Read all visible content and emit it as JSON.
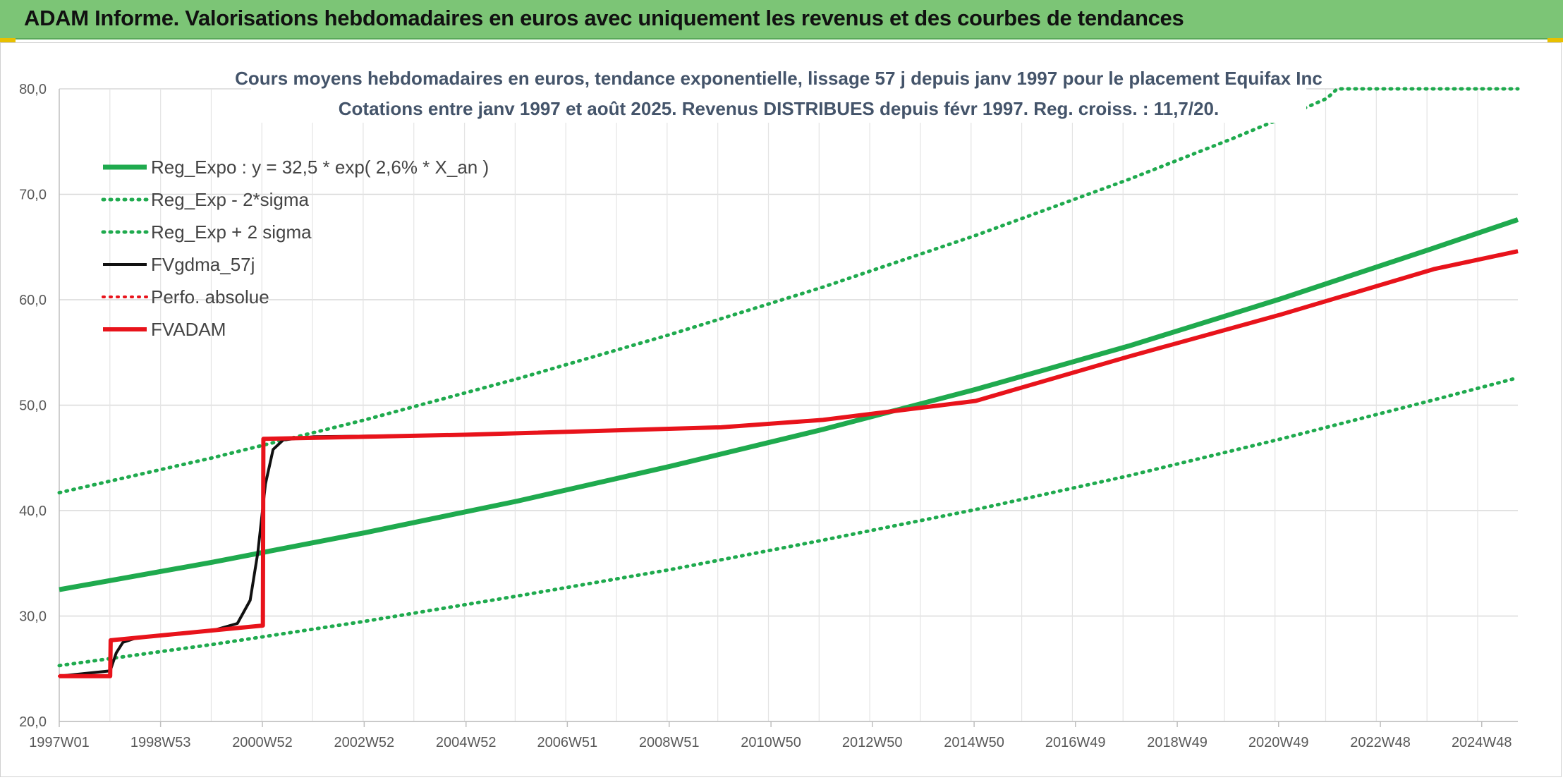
{
  "banner": {
    "title": "ADAM Informe. Valorisations hebdomadaires en euros avec uniquement les revenus et des courbes de tendances"
  },
  "chart_data": {
    "type": "line",
    "title": "Cours moyens hebdomadaires en euros, tendance exponentielle, lissage 57 j depuis janv 1997 pour le placement Equifax Inc",
    "subtitle": "Cotations entre janv 1997 et août 2025. Revenus DISTRIBUES depuis févr 1997. Reg. croiss. : 11,7/20.",
    "xlabel": "",
    "ylabel": "",
    "ylim": [
      20,
      80
    ],
    "yticks": [
      20,
      30,
      40,
      50,
      60,
      70,
      80
    ],
    "ytick_labels": [
      "20,0",
      "30,0",
      "40,0",
      "50,0",
      "60,0",
      "70,0",
      "80,0"
    ],
    "xlim": [
      1997.0,
      2025.65
    ],
    "xticks": [
      1997.0,
      1998.99,
      2000.99,
      2002.99,
      2004.99,
      2006.98,
      2008.98,
      2010.98,
      2012.97,
      2014.97,
      2016.96,
      2018.96,
      2020.95,
      2022.95,
      2024.94
    ],
    "xtick_labels": [
      "1997W01",
      "1998W53",
      "2000W52",
      "2002W52",
      "2004W52",
      "2006W51",
      "2008W51",
      "2010W50",
      "2012W50",
      "2014W50",
      "2016W49",
      "2018W49",
      "2020W49",
      "2022W48",
      "2024W48"
    ],
    "grid": true,
    "legend_position": "top-left",
    "series": [
      {
        "name": "Reg_Expo : y = 32,5 * exp( 2,6% *  X_an )",
        "color": "#1faa4e",
        "style": "solid",
        "width": 7,
        "x": [
          1997.0,
          2000.0,
          2003.0,
          2006.0,
          2009.0,
          2012.0,
          2015.0,
          2018.0,
          2021.0,
          2024.0,
          2025.65
        ],
        "y": [
          32.5,
          35.1,
          37.9,
          40.9,
          44.2,
          47.7,
          51.5,
          55.6,
          60.1,
          64.9,
          67.6
        ]
      },
      {
        "name": "Reg_Exp - 2*sigma",
        "color": "#1faa4e",
        "style": "dotted",
        "width": 5,
        "x": [
          1997.0,
          2000.0,
          2003.0,
          2006.0,
          2009.0,
          2012.0,
          2015.0,
          2018.0,
          2021.0,
          2024.0,
          2025.65
        ],
        "y": [
          25.3,
          27.3,
          29.5,
          31.9,
          34.4,
          37.2,
          40.1,
          43.3,
          46.8,
          50.5,
          52.6
        ]
      },
      {
        "name": "Reg_Exp + 2 sigma",
        "color": "#1faa4e",
        "style": "dotted",
        "width": 5,
        "x": [
          1997.0,
          2000.0,
          2003.0,
          2006.0,
          2009.0,
          2012.0,
          2015.0,
          2018.0,
          2020.0,
          2021.0,
          2021.9,
          2022.1,
          2025.65
        ],
        "y": [
          41.7,
          45.0,
          48.6,
          52.5,
          56.7,
          61.2,
          66.1,
          71.4,
          75.2,
          77.2,
          79.1,
          80.0,
          80.0
        ]
      },
      {
        "name": "FVgdma_57j",
        "color": "#111111",
        "style": "solid",
        "width": 4,
        "x": [
          1997.0,
          1998.0,
          1998.12,
          1998.25,
          1998.5,
          2000.0,
          2000.5,
          2000.75,
          2000.9,
          2001.05,
          2001.2,
          2001.4,
          2002.0,
          2005.0,
          2010.0,
          2012.0,
          2015.0,
          2018.0,
          2021.0,
          2024.0,
          2025.65
        ],
        "y": [
          24.3,
          24.8,
          26.5,
          27.5,
          27.9,
          28.6,
          29.3,
          31.5,
          36.0,
          42.5,
          45.8,
          46.7,
          47.0,
          47.2,
          47.9,
          48.6,
          50.4,
          54.6,
          58.6,
          62.9,
          64.6
        ]
      },
      {
        "name": "Perfo. absolue",
        "color": "#e8131b",
        "style": "dotted",
        "width": 4,
        "x": [
          1997.0,
          1998.0,
          1998.01,
          2001.0,
          2001.01,
          2005.0,
          2010.0,
          2012.0,
          2015.0,
          2018.0,
          2021.0,
          2024.0,
          2025.65
        ],
        "y": [
          24.3,
          24.3,
          27.7,
          29.1,
          46.8,
          47.2,
          47.9,
          48.6,
          50.4,
          54.6,
          58.6,
          62.9,
          64.6
        ]
      },
      {
        "name": "FVADAM",
        "color": "#e8131b",
        "style": "solid",
        "width": 6,
        "x": [
          1997.0,
          1998.0,
          1998.01,
          2001.0,
          2001.01,
          2005.0,
          2010.0,
          2012.0,
          2015.0,
          2018.0,
          2021.0,
          2024.0,
          2025.65
        ],
        "y": [
          24.3,
          24.3,
          27.7,
          29.1,
          46.8,
          47.2,
          47.9,
          48.6,
          50.4,
          54.6,
          58.6,
          62.9,
          64.6
        ]
      }
    ]
  }
}
